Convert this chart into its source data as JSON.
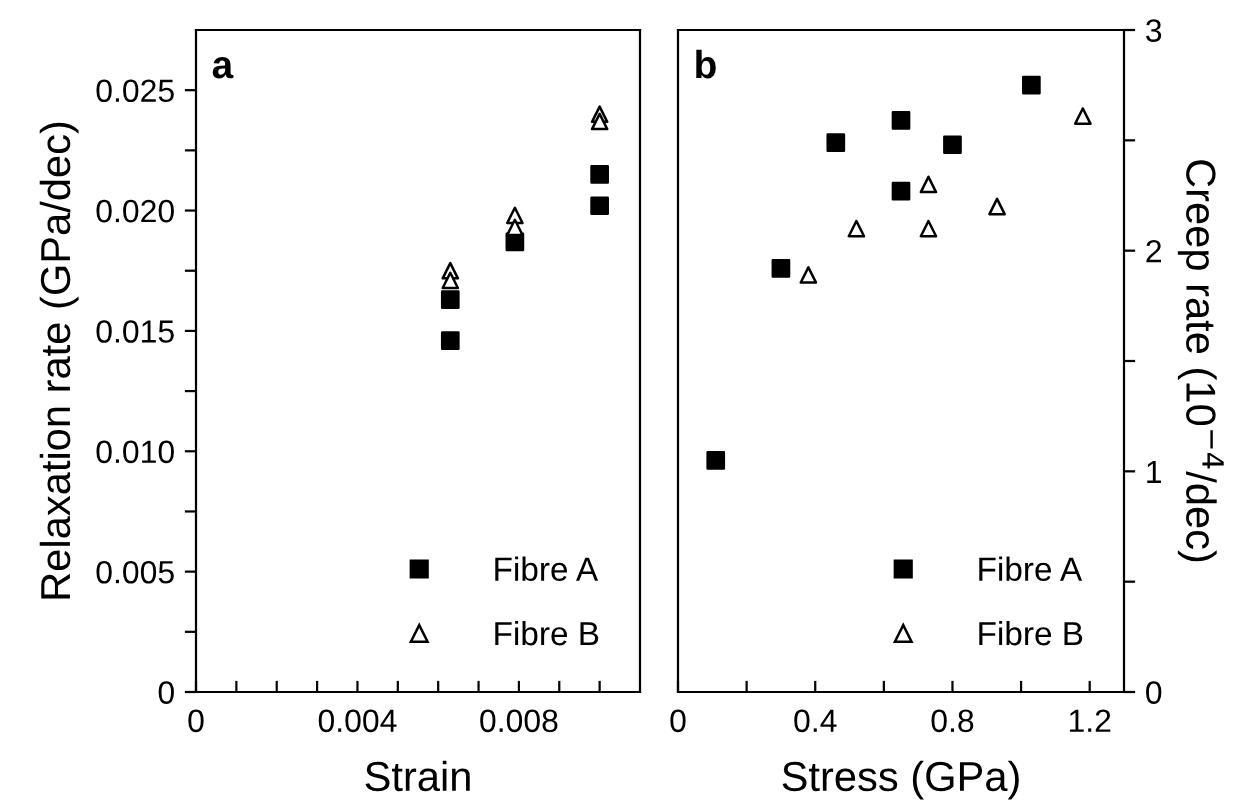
{
  "chart_data": [
    {
      "type": "scatter",
      "xlabel": "Strain",
      "ylabel": "Relaxation rate (GPa/dec)",
      "annotations": [
        "a"
      ],
      "legend": "bottom right",
      "grid": false,
      "xlim": [
        0,
        0.011
      ],
      "xticks": [
        0,
        {
          "value": 0.001,
          "label": null
        },
        {
          "value": 0.002,
          "label": null
        },
        {
          "value": 0.003,
          "label": null
        },
        {
          "value": 0.004,
          "label": "0.004"
        },
        {
          "value": 0.005,
          "label": null
        },
        {
          "value": 0.006,
          "label": null
        },
        {
          "value": 0.007,
          "label": null
        },
        {
          "value": 0.008,
          "label": "0.008"
        },
        {
          "value": 0.009,
          "label": null
        },
        {
          "value": 0.01,
          "label": null
        }
      ],
      "ylim": [
        0,
        0.0275
      ],
      "yticks": [
        0,
        {
          "value": 0.0025,
          "label": null
        },
        0.005,
        {
          "value": 0.0075,
          "label": null
        },
        {
          "value": 0.01,
          "label": "0.010"
        },
        {
          "value": 0.0125,
          "label": null
        },
        0.015,
        {
          "value": 0.0175,
          "label": null
        },
        {
          "value": 0.02,
          "label": "0.020"
        },
        {
          "value": 0.0225,
          "label": null
        },
        0.025
      ],
      "series": [
        {
          "name": "Fibre A",
          "color": "#000000",
          "marker": "square",
          "x": [
            0.0063,
            0.0063,
            0.0079,
            0.01,
            0.01
          ],
          "values": [
            0.0163,
            0.0146,
            0.0187,
            0.0215,
            0.0202
          ]
        },
        {
          "name": "Fibre B",
          "color": "#000000",
          "marker": "triangle",
          "x": [
            0.0063,
            0.0063,
            0.0079,
            0.0079,
            0.01,
            0.01
          ],
          "values": [
            0.0175,
            0.0171,
            0.0198,
            0.0193,
            0.024,
            0.0237
          ]
        }
      ]
    },
    {
      "type": "scatter",
      "xlabel": "Stress (GPa)",
      "y2label": "Creep rate (10$^{−4}$/dec)",
      "annotations": [
        "b"
      ],
      "legend": "bottom right",
      "grid": false,
      "xlim": [
        0,
        1.3
      ],
      "xticks": [
        0,
        {
          "value": 0.2,
          "label": null
        },
        0.4,
        {
          "value": 0.6,
          "label": null
        },
        0.8,
        {
          "value": 1.0,
          "label": null
        },
        1.2
      ],
      "y2lim": [
        0,
        3
      ],
      "y2ticks": [
        0,
        {
          "value": 0.5,
          "label": null
        },
        1,
        {
          "value": 1.5,
          "label": null
        },
        2,
        {
          "value": 2.5,
          "label": null
        },
        3
      ],
      "series": [
        {
          "name": "Fibre A",
          "color": "#000000",
          "marker": "square",
          "axis": "y2",
          "x": [
            0.11,
            0.3,
            0.46,
            0.65,
            0.65,
            0.8,
            1.03
          ],
          "values": [
            1.05,
            1.92,
            2.49,
            2.59,
            2.27,
            2.48,
            2.75
          ]
        },
        {
          "name": "Fibre B",
          "color": "#000000",
          "marker": "triangle",
          "axis": "y2",
          "x": [
            0.38,
            0.52,
            0.73,
            0.73,
            0.93,
            1.18
          ],
          "values": [
            1.89,
            2.1,
            2.3,
            2.1,
            2.2,
            2.61
          ]
        }
      ]
    }
  ]
}
